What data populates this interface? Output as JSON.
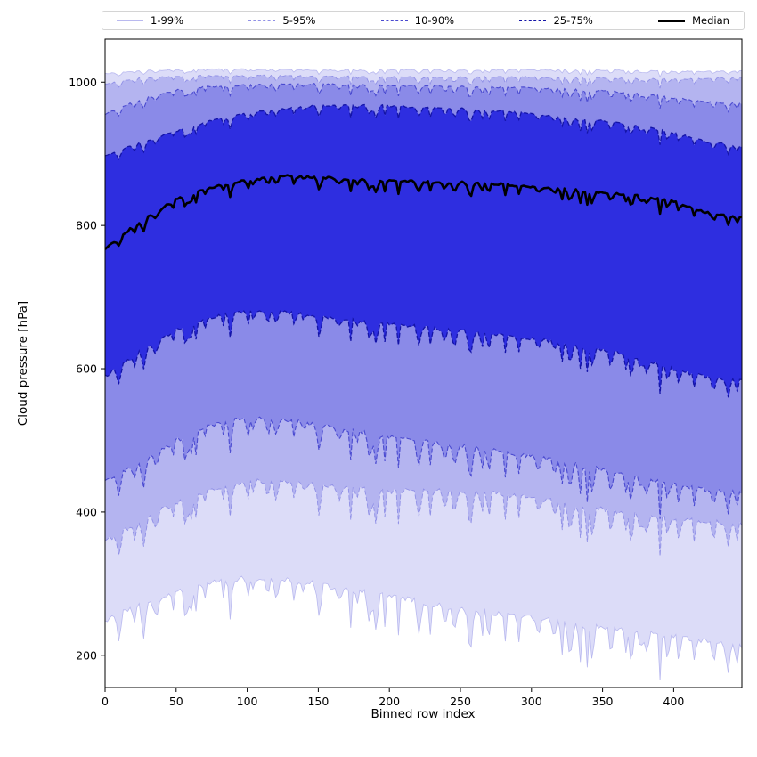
{
  "figure": {
    "background": "#ffffff"
  },
  "chart_data": {
    "type": "area",
    "title": "",
    "xlabel": "Binned row index",
    "ylabel": "Cloud pressure [hPa]",
    "xlim": [
      0,
      448
    ],
    "ylim": [
      155,
      1060
    ],
    "xticks": [
      0,
      50,
      100,
      150,
      200,
      250,
      300,
      350,
      400
    ],
    "yticks": [
      200,
      400,
      600,
      800,
      1000
    ],
    "grid": false,
    "legend_position": "top-outside-horizontal",
    "x": [
      0,
      25,
      50,
      75,
      100,
      125,
      150,
      175,
      200,
      225,
      250,
      275,
      300,
      325,
      350,
      375,
      400,
      425,
      448
    ],
    "series": [
      {
        "name": "p99",
        "label": "99th percentile",
        "values": [
          1012,
          1016,
          1017,
          1018,
          1018,
          1018,
          1017,
          1017,
          1017,
          1017,
          1017,
          1017,
          1018,
          1017,
          1017,
          1016,
          1015,
          1015,
          1016
        ]
      },
      {
        "name": "p95",
        "label": "95th percentile",
        "values": [
          997,
          1006,
          1008,
          1009,
          1009,
          1009,
          1008,
          1008,
          1007,
          1007,
          1007,
          1007,
          1007,
          1006,
          1006,
          1005,
          1004,
          1005,
          1007
        ]
      },
      {
        "name": "p90",
        "label": "90th percentile",
        "values": [
          955,
          976,
          989,
          994,
          996,
          997,
          997,
          996,
          995,
          995,
          994,
          993,
          992,
          990,
          988,
          984,
          978,
          972,
          970
        ]
      },
      {
        "name": "p75",
        "label": "75th percentile",
        "values": [
          897,
          916,
          932,
          946,
          956,
          963,
          967,
          968,
          967,
          965,
          963,
          960,
          956,
          951,
          946,
          939,
          929,
          916,
          911
        ]
      },
      {
        "name": "median",
        "label": "Median",
        "values": [
          768,
          806,
          836,
          853,
          863,
          869,
          867,
          864,
          862,
          861,
          860,
          858,
          854,
          850,
          846,
          841,
          834,
          817,
          812
        ]
      },
      {
        "name": "p25",
        "label": "25th percentile",
        "values": [
          589,
          624,
          654,
          672,
          681,
          679,
          673,
          668,
          663,
          658,
          653,
          648,
          642,
          635,
          627,
          615,
          599,
          587,
          583
        ]
      },
      {
        "name": "p10",
        "label": "10th percentile",
        "values": [
          444,
          470,
          500,
          521,
          531,
          529,
          521,
          513,
          505,
          498,
          492,
          486,
          478,
          469,
          459,
          449,
          438,
          430,
          427
        ]
      },
      {
        "name": "p5",
        "label": "5th percentile",
        "values": [
          359,
          388,
          413,
          431,
          444,
          442,
          437,
          433,
          429,
          432,
          429,
          426,
          420,
          412,
          404,
          396,
          390,
          386,
          383
        ]
      },
      {
        "name": "p1",
        "label": "1st percentile",
        "values": [
          249,
          271,
          288,
          301,
          309,
          306,
          299,
          291,
          283,
          273,
          266,
          259,
          252,
          245,
          238,
          232,
          226,
          218,
          213
        ]
      }
    ],
    "bands": [
      {
        "label": "1-99%",
        "lower": "p1",
        "upper": "p99",
        "fill": "#dcdcf8",
        "line": "#b9b9ef",
        "dash": "",
        "lw": 0.8
      },
      {
        "label": "5-95%",
        "lower": "p5",
        "upper": "p95",
        "fill": "#b4b4f0",
        "line": "#9090e6",
        "dash": "5,2.5",
        "lw": 0.9
      },
      {
        "label": "10-90%",
        "lower": "p10",
        "upper": "p90",
        "fill": "#8a8ae8",
        "line": "#4a4ad0",
        "dash": "5,2.5",
        "lw": 1.1
      },
      {
        "label": "25-75%",
        "lower": "p25",
        "upper": "p75",
        "fill": "#2e2ee0",
        "line": "#1414a8",
        "dash": "5,2.5",
        "lw": 1.3
      }
    ],
    "median_style": {
      "label": "Median",
      "color": "#000000",
      "lw": 2.6
    },
    "legend": {
      "labels": [
        "1-99%",
        "5-95%",
        "10-90%",
        "25-75%",
        "Median"
      ]
    }
  }
}
